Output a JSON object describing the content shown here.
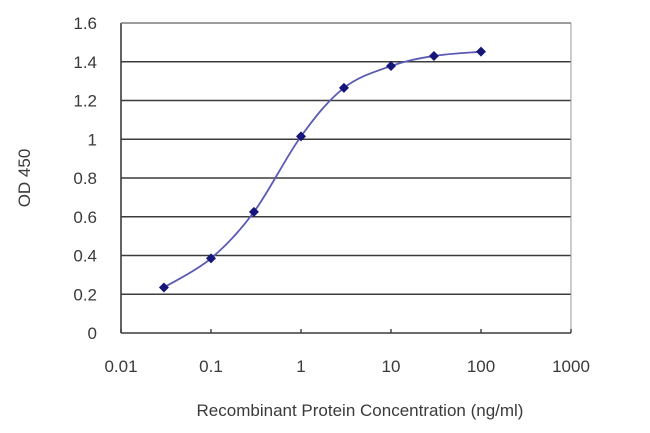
{
  "chart_data": {
    "type": "line",
    "title": "",
    "xlabel": "Recombinant Protein Concentration (ng/ml)",
    "ylabel": "OD 450",
    "xscale": "log",
    "xlim": [
      0.01,
      1000
    ],
    "ylim": [
      0,
      1.6
    ],
    "x_ticks": [
      "0.01",
      "0.1",
      "1",
      "10",
      "100",
      "1000"
    ],
    "y_ticks": [
      "0",
      "0.2",
      "0.4",
      "0.6",
      "0.8",
      "1",
      "1.2",
      "1.4",
      "1.6"
    ],
    "grid": "horizontal",
    "legend": null,
    "series": [
      {
        "name": "OD 450",
        "x": [
          0.03,
          0.1,
          0.3,
          1,
          3,
          10,
          30,
          100
        ],
        "values": [
          0.235,
          0.385,
          0.625,
          1.015,
          1.265,
          1.378,
          1.43,
          1.452
        ]
      }
    ]
  },
  "colors": {
    "line": "#5b5bb5",
    "marker": "#16167a",
    "grid": "#3c3c3c",
    "axis": "#3c3c3c",
    "text": "#3a3a3a"
  }
}
